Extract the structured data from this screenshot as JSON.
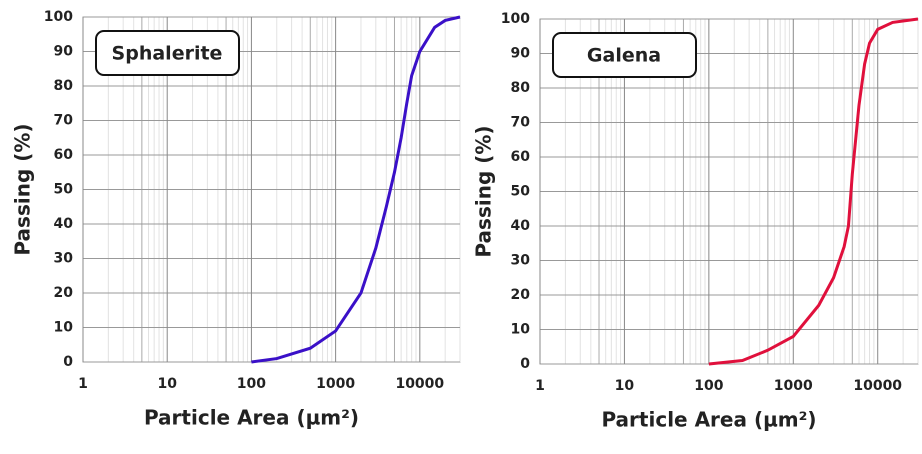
{
  "chart_data": [
    {
      "type": "line",
      "x_label": "Particle Area (µm²)",
      "y_label": "Passing (%)",
      "log_x": true,
      "grid": true,
      "xlim": [
        1,
        30000
      ],
      "ylim": [
        0,
        100
      ],
      "xticks": [
        1,
        10,
        100,
        1000,
        10000
      ],
      "yticks": [
        0,
        10,
        20,
        30,
        40,
        50,
        60,
        70,
        80,
        90,
        100
      ],
      "x": [
        100,
        200,
        500,
        1000,
        2000,
        3000,
        4000,
        5000,
        6000,
        7000,
        8000,
        10000,
        15000,
        20000,
        30000
      ],
      "series": [
        {
          "name": "Sphalerite",
          "color": "#3a10c8",
          "values": [
            0,
            1,
            4,
            9,
            20,
            33,
            45,
            55,
            65,
            75,
            83,
            90,
            97,
            99,
            100
          ]
        }
      ]
    },
    {
      "type": "line",
      "x_label": "Particle Area (µm²)",
      "y_label": "Passing (%)",
      "log_x": true,
      "grid": true,
      "xlim": [
        1,
        30000
      ],
      "ylim": [
        0,
        100
      ],
      "xticks": [
        1,
        10,
        100,
        1000,
        10000
      ],
      "yticks": [
        0,
        10,
        20,
        30,
        40,
        50,
        60,
        70,
        80,
        90,
        100
      ],
      "x": [
        100,
        250,
        500,
        1000,
        2000,
        3000,
        4000,
        4500,
        5000,
        6000,
        7000,
        8000,
        10000,
        15000,
        30000
      ],
      "series": [
        {
          "name": "Galena",
          "color": "#e0103c",
          "values": [
            0,
            1,
            4,
            8,
            17,
            25,
            34,
            40,
            55,
            75,
            87,
            93,
            97,
            99,
            100
          ]
        }
      ]
    }
  ]
}
